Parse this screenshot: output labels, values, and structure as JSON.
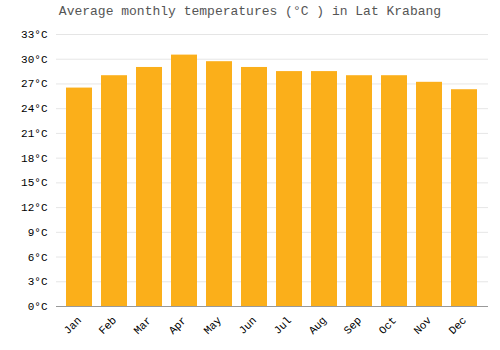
{
  "chart_data": {
    "type": "bar",
    "title": "Average monthly temperatures (°C ) in Lat Krabang",
    "categories": [
      "Jan",
      "Feb",
      "Mar",
      "Apr",
      "May",
      "Jun",
      "Jul",
      "Aug",
      "Sep",
      "Oct",
      "Nov",
      "Dec"
    ],
    "values": [
      26.5,
      28.0,
      29.0,
      30.5,
      29.7,
      29.0,
      28.5,
      28.5,
      28.0,
      28.0,
      27.2,
      26.3
    ],
    "color": "#FBAF1A",
    "ylim": [
      0,
      33
    ],
    "yticks": [
      {
        "value": 0,
        "label": "0°C"
      },
      {
        "value": 3,
        "label": "3°C"
      },
      {
        "value": 6,
        "label": "6°C"
      },
      {
        "value": 9,
        "label": "9°C"
      },
      {
        "value": 12,
        "label": "12°C"
      },
      {
        "value": 15,
        "label": "15°C"
      },
      {
        "value": 18,
        "label": "18°C"
      },
      {
        "value": 21,
        "label": "21°C"
      },
      {
        "value": 24,
        "label": "24°C"
      },
      {
        "value": 27,
        "label": "27°C"
      },
      {
        "value": 30,
        "label": "30°C"
      },
      {
        "value": 33,
        "label": "33°C"
      }
    ],
    "grid": true
  }
}
